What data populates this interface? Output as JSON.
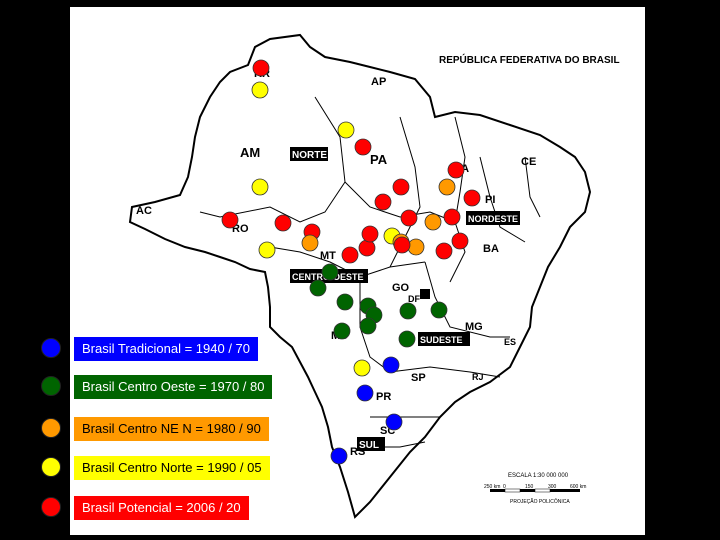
{
  "map": {
    "title": "REPÚBLICA FEDERATIVA DO BRASIL",
    "state_labels": [
      "RR",
      "AP",
      "AM",
      "PA",
      "MA",
      "CE",
      "PI",
      "AC",
      "RO",
      "MT",
      "BA",
      "GO",
      "DF",
      "MS",
      "MG",
      "ES",
      "SP",
      "RJ",
      "PR",
      "SC",
      "RS"
    ],
    "region_labels": [
      "NORTE",
      "NORDESTE",
      "CENTRO-OESTE",
      "SUDESTE",
      "SUL"
    ],
    "scale": {
      "label": "ESCALA 1:30 000 000",
      "ticks": [
        "250 km",
        "0",
        "150",
        "300",
        "600 km"
      ],
      "projection": "PROJEÇÃO POLICÔNICA"
    }
  },
  "legend": [
    {
      "color": "#0000ff",
      "label": "Brasil Tradicional = 1940 / 70",
      "bg": "#0000ff"
    },
    {
      "color": "#006400",
      "label": "Brasil Centro Oeste = 1970 / 80",
      "bg": "#006400"
    },
    {
      "color": "#ff9900",
      "label": "Brasil Centro NE N = 1980 / 90",
      "bg": "#ff9900"
    },
    {
      "color": "#ffff00",
      "label": "Brasil Centro Norte = 1990 / 05",
      "bg": "#ffff00"
    },
    {
      "color": "#ff0000",
      "label": "Brasil Potencial = 2006 / 20",
      "bg": "#ff0000"
    }
  ],
  "markers": [
    {
      "phase": "red"
    },
    {
      "phase": "yellow"
    },
    {
      "phase": "yellow"
    },
    {
      "phase": "red"
    },
    {
      "phase": "yellow"
    },
    {
      "phase": "red"
    },
    {
      "phase": "orange"
    },
    {
      "phase": "red"
    },
    {
      "phase": "red"
    },
    {
      "phase": "red"
    },
    {
      "phase": "red"
    },
    {
      "phase": "red"
    },
    {
      "phase": "red"
    },
    {
      "phase": "red"
    },
    {
      "phase": "yellow"
    },
    {
      "phase": "orange"
    },
    {
      "phase": "red"
    },
    {
      "phase": "red"
    },
    {
      "phase": "red"
    },
    {
      "phase": "red"
    },
    {
      "phase": "yellow"
    },
    {
      "phase": "orange"
    },
    {
      "phase": "orange"
    },
    {
      "phase": "red"
    },
    {
      "phase": "orange"
    },
    {
      "phase": "red"
    },
    {
      "phase": "red"
    },
    {
      "phase": "green"
    },
    {
      "phase": "green"
    },
    {
      "phase": "green"
    },
    {
      "phase": "green"
    },
    {
      "phase": "green"
    },
    {
      "phase": "green"
    },
    {
      "phase": "green"
    },
    {
      "phase": "green"
    },
    {
      "phase": "green"
    },
    {
      "phase": "green"
    },
    {
      "phase": "yellow"
    },
    {
      "phase": "blue"
    },
    {
      "phase": "blue"
    },
    {
      "phase": "blue"
    },
    {
      "phase": "blue"
    }
  ]
}
